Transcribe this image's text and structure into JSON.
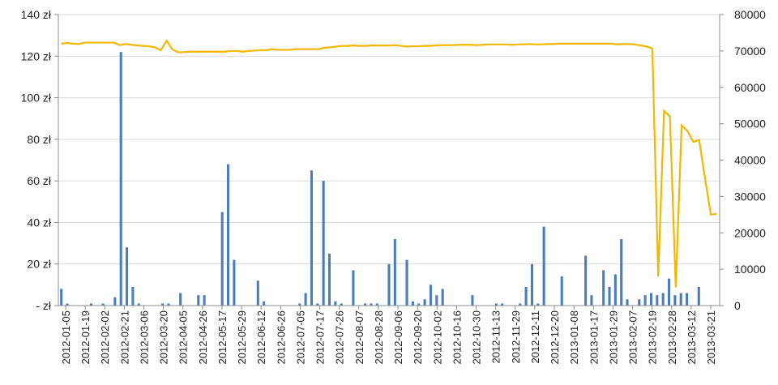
{
  "chart_data": {
    "type": "bar",
    "grid": true,
    "legend": "none",
    "colors": {
      "bars": "#4a7ebb",
      "line": "#f2b700",
      "grid": "#d9d9d9"
    },
    "y_left": {
      "ylim": [
        0,
        140
      ],
      "ticks": [
        0,
        20,
        40,
        60,
        80,
        100,
        120,
        140
      ],
      "tick_labels": [
        "- zł",
        "20 zł",
        "40 zł",
        "60 zł",
        "80 zł",
        "100 zł",
        "120 zł",
        "140 zł"
      ]
    },
    "y_right": {
      "ylim": [
        0,
        80000
      ],
      "ticks": [
        0,
        10000,
        20000,
        30000,
        40000,
        50000,
        60000,
        70000,
        80000
      ],
      "tick_labels": [
        "0",
        "10000",
        "20000",
        "30000",
        "40000",
        "50000",
        "60000",
        "70000",
        "80000"
      ]
    },
    "x_tick_labels": [
      "2012-01-05",
      "2012-01-19",
      "2012-02-02",
      "2012-02-21",
      "2012-03-06",
      "2012-03-20",
      "2012-04-05",
      "2012-04-26",
      "2012-05-17",
      "2012-05-29",
      "2012-06-12",
      "2012-06-26",
      "2012-07-05",
      "2012-07-17",
      "2012-07-26",
      "2012-08-07",
      "2012-08-28",
      "2012-09-06",
      "2012-09-20",
      "2012-10-02",
      "2012-10-16",
      "2012-10-30",
      "2012-11-13",
      "2012-11-29",
      "2012-12-11",
      "2012-12-20",
      "2013-01-08",
      "2013-01-17",
      "2013-01-29",
      "2013-02-07",
      "2013-02-19",
      "2013-02-28",
      "2013-03-12",
      "2013-03-21"
    ],
    "series": [
      {
        "type": "bar",
        "axis": "left",
        "values": [
          8,
          1,
          0,
          0,
          0,
          1,
          0,
          1,
          0,
          4,
          122,
          28,
          9,
          1,
          0,
          0,
          0,
          1,
          1,
          0,
          6,
          0,
          0,
          5,
          5,
          0,
          0,
          45,
          68,
          22,
          0,
          0,
          0,
          12,
          2,
          0,
          0,
          0,
          0,
          0,
          1,
          6,
          65,
          1,
          60,
          25,
          2,
          1,
          0,
          17,
          0,
          1,
          1,
          1,
          0,
          20,
          32,
          0,
          22,
          2,
          1,
          3,
          10,
          5,
          8,
          0,
          0,
          0,
          0,
          5,
          0,
          0,
          0,
          1,
          1,
          0,
          0,
          1,
          9,
          20,
          1,
          38,
          0,
          0,
          14,
          0,
          0,
          0,
          24,
          5,
          0,
          17,
          9,
          15,
          32,
          3,
          0,
          3,
          5,
          6,
          5,
          6,
          13,
          5,
          6,
          6,
          0,
          9,
          0,
          0,
          0
        ]
      },
      {
        "type": "line",
        "axis": "right",
        "values": [
          72000,
          72200,
          72000,
          71900,
          72300,
          72300,
          72300,
          72300,
          72300,
          72300,
          71600,
          71900,
          71700,
          71500,
          71400,
          71300,
          71000,
          70200,
          72800,
          70400,
          69600,
          69700,
          69800,
          69800,
          69800,
          69800,
          69800,
          69800,
          69800,
          70000,
          70000,
          69800,
          70000,
          70100,
          70200,
          70200,
          70500,
          70300,
          70300,
          70300,
          70500,
          70500,
          70500,
          70500,
          70500,
          70900,
          71000,
          71200,
          71400,
          71400,
          71500,
          71400,
          71400,
          71500,
          71500,
          71500,
          71500,
          71600,
          71400,
          71200,
          71300,
          71300,
          71400,
          71400,
          71500,
          71600,
          71600,
          71600,
          71700,
          71700,
          71700,
          71600,
          71700,
          71800,
          71800,
          71800,
          71800,
          71700,
          71800,
          71800,
          71900,
          71800,
          71800,
          71900,
          71900,
          72000,
          72000,
          72000,
          72000,
          72000,
          72000,
          72000,
          72000,
          72000,
          72000,
          71800,
          71900,
          71900,
          71800,
          71500,
          71200,
          70700,
          8000,
          53500,
          52000,
          5000,
          49500,
          48000,
          45000,
          45500,
          35000,
          25000,
          25200
        ]
      }
    ]
  }
}
